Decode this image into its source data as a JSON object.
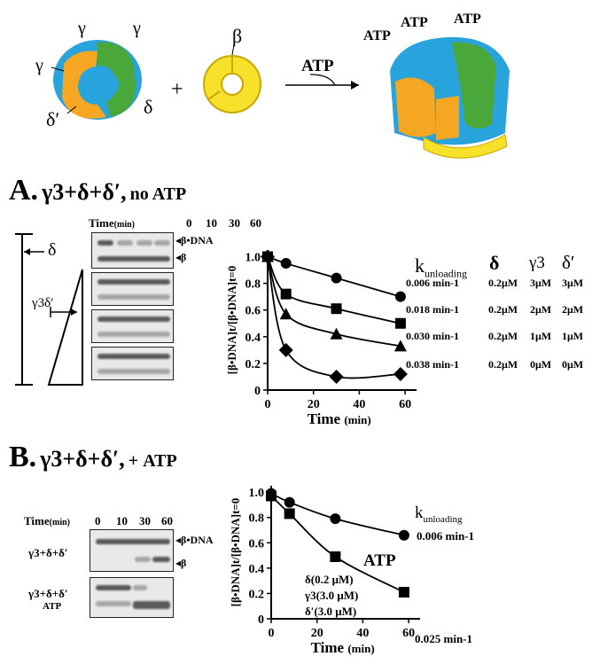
{
  "scheme": {
    "gamma_labels": [
      "γ",
      "γ",
      "γ"
    ],
    "delta_label": "δ",
    "delta_prime_label": "δ′",
    "beta_label": "β",
    "plus": "+",
    "arrow_label": "ATP",
    "atp_labels": [
      "ATP",
      "ATP",
      "ATP"
    ],
    "colors": {
      "gamma": "#29a3dc",
      "delta": "#4aa83a",
      "delta_prime": "#f5a623",
      "beta": "#f7e12b"
    }
  },
  "panelA": {
    "letter": "A.",
    "title_main": "γ3+δ+δ′,",
    "title_suffix": "no ATP",
    "gel": {
      "time_label": "Time",
      "time_unit": "(min)",
      "times": [
        "0",
        "10",
        "30",
        "60"
      ],
      "band_labels": [
        "β•DNA",
        "β"
      ],
      "left_labels": [
        "δ",
        "γ3δ′"
      ]
    },
    "chart": {
      "ylabel": "[β•DNA]t/[β•DNA]t=0",
      "xlabel": "Time",
      "xunit": "(min)",
      "header": {
        "k": "k",
        "k_sub": "unloading",
        "delta": "δ",
        "gamma": "γ3",
        "delta_prime": "δ′"
      },
      "rows": [
        {
          "k": "0.006 min-1",
          "delta": "0.2μM",
          "gamma": "3μM",
          "delta_prime": "3μM"
        },
        {
          "k": "0.018 min-1",
          "delta": "0.2μM",
          "gamma": "2μM",
          "delta_prime": "2μM"
        },
        {
          "k": "0.030 min-1",
          "delta": "0.2μM",
          "gamma": "1μM",
          "delta_prime": "1μM"
        },
        {
          "k": "0.038 min-1",
          "delta": "0.2μM",
          "gamma": "0μM",
          "delta_prime": "0μM"
        }
      ]
    }
  },
  "panelB": {
    "letter": "B.",
    "title_main": "γ3+δ+δ′,",
    "title_suffix": "+ ATP",
    "gel": {
      "time_label": "Time",
      "time_unit": "(min)",
      "times": [
        "0",
        "10",
        "30",
        "60"
      ],
      "band_labels": [
        "β•DNA",
        "β"
      ],
      "lane_labels": [
        "γ3+δ+δ′",
        "γ3+δ+δ′",
        "ATP"
      ]
    },
    "chart": {
      "ylabel": "[β•DNA]t/[β•DNA]t=0",
      "xlabel": "Time",
      "xunit": "(min)",
      "k_label": "k",
      "k_sub": "unloading",
      "k_values": [
        "0.006 min-1",
        "0.025 min-1"
      ],
      "atp_label": "ATP",
      "conditions": [
        "δ(0.2 μM)",
        "γ3(3.0 μM)",
        "δ′(3.0 μM)"
      ]
    }
  },
  "chart_data": [
    {
      "type": "scatter",
      "title": "",
      "xlabel": "Time (min)",
      "ylabel": "[β•DNA]t/[β•DNA]t=0",
      "xlim": [
        0,
        65
      ],
      "ylim": [
        0,
        1.05
      ],
      "xticks": [
        0,
        20,
        40,
        60
      ],
      "yticks": [
        0,
        0.2,
        0.4,
        0.6,
        0.8,
        1.0
      ],
      "series": [
        {
          "name": "0.006 min-1",
          "marker": "circle",
          "x": [
            0,
            8,
            30,
            58
          ],
          "y": [
            1.0,
            0.95,
            0.84,
            0.7
          ]
        },
        {
          "name": "0.018 min-1",
          "marker": "square",
          "x": [
            0,
            8,
            30,
            58
          ],
          "y": [
            1.0,
            0.72,
            0.61,
            0.5
          ]
        },
        {
          "name": "0.030 min-1",
          "marker": "triangle",
          "x": [
            0,
            8,
            30,
            58
          ],
          "y": [
            1.0,
            0.57,
            0.42,
            0.33
          ]
        },
        {
          "name": "0.038 min-1",
          "marker": "diamond",
          "x": [
            0,
            8,
            30,
            58
          ],
          "y": [
            1.0,
            0.3,
            0.1,
            0.12
          ]
        }
      ]
    },
    {
      "type": "scatter",
      "title": "",
      "xlabel": "Time (min)",
      "ylabel": "[β•DNA]t/[β•DNA]t=0",
      "xlim": [
        0,
        65
      ],
      "ylim": [
        0,
        1.05
      ],
      "xticks": [
        0,
        20,
        40,
        60
      ],
      "yticks": [
        0,
        0.2,
        0.4,
        0.6,
        0.8,
        1.0
      ],
      "series": [
        {
          "name": "0.006 min-1",
          "marker": "circle",
          "x": [
            0,
            8,
            28,
            58
          ],
          "y": [
            0.99,
            0.92,
            0.79,
            0.66
          ]
        },
        {
          "name": "0.025 min-1",
          "marker": "square",
          "x": [
            0,
            8,
            28,
            58
          ],
          "y": [
            0.97,
            0.83,
            0.49,
            0.21
          ]
        }
      ]
    }
  ]
}
